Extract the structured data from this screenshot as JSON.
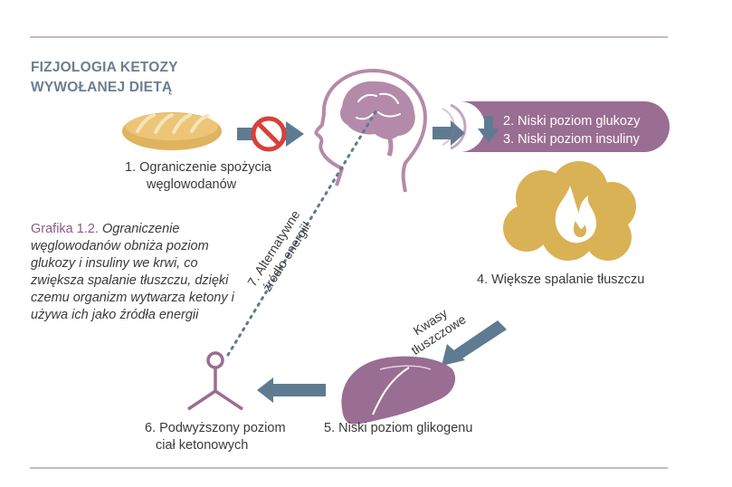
{
  "header": {
    "title_line1": "FIZJOLOGIA KETOZY",
    "title_line2": "WYWOŁANEJ DIETĄ"
  },
  "steps": {
    "step1_line1": "1. Ograniczenie spożycia",
    "step1_line2": "węglowodanów",
    "step2": "2. Niski poziom glukozy",
    "step3": "3. Niski poziom insuliny",
    "step4": "4. Większe spalanie tłuszczu",
    "step5": "5. Niski poziom glikogenu",
    "step6_line1": "6. Podwyższony poziom",
    "step6_line2": "ciał ketonowych",
    "step7_line1": "7. Alternatywne",
    "step7_line2": "źródło energii!",
    "fatty_acids_line1": "Kwasy",
    "fatty_acids_line2": "tłuszczowe"
  },
  "caption": {
    "label": "Grafika 1.2.",
    "text": "Ograniczenie węglowodanów obniża poziom glukozy i insuliny we krwi, co zwiększa spalanie tłuszczu, dzięki czemu organizm wytwarza ketony i używa ich jako źródła energii"
  },
  "colors": {
    "accent_purple": "#9a6d93",
    "brain_purple": "#b48aaa",
    "arrow_blue": "#5f7b91",
    "fat_gold": "#d8b255",
    "bread": "#e0b35f",
    "no_sign_red": "#d6413a",
    "rule": "#c9b7c6"
  },
  "icons": [
    "bread-icon",
    "no-sign-icon",
    "head-brain-icon",
    "fire-cloud-icon",
    "liver-icon",
    "ketone-icon"
  ]
}
